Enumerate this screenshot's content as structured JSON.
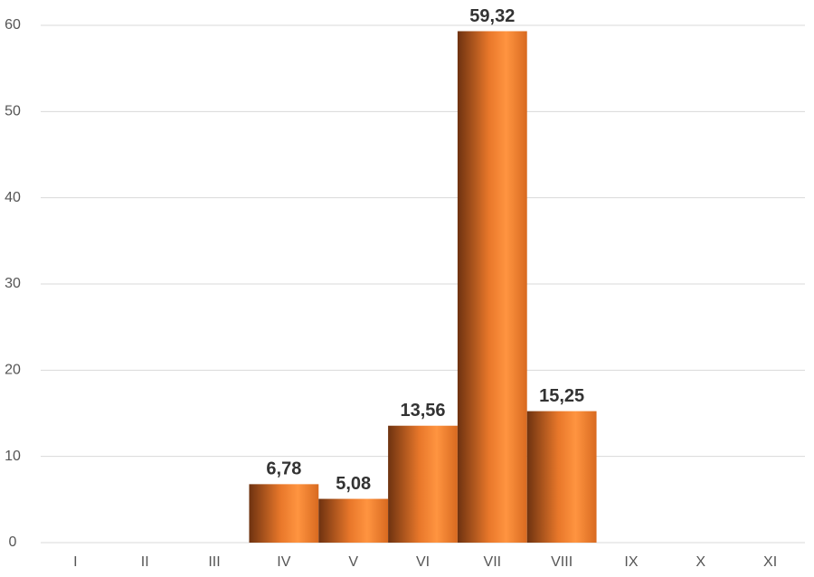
{
  "chart_data": {
    "type": "bar",
    "categories": [
      "I",
      "II",
      "III",
      "IV",
      "V",
      "VI",
      "VII",
      "VIII",
      "IX",
      "X",
      "XI"
    ],
    "values": [
      null,
      null,
      null,
      6.78,
      5.08,
      13.56,
      59.32,
      15.25,
      null,
      null,
      null
    ],
    "value_labels": [
      null,
      null,
      null,
      "6,78",
      "5,08",
      "13,56",
      "59,32",
      "15,25",
      null,
      null,
      null
    ],
    "color": "#f0802a",
    "ylim": [
      0,
      60
    ],
    "yticks": [
      0,
      10,
      20,
      30,
      40,
      50,
      60
    ],
    "grid": true
  }
}
